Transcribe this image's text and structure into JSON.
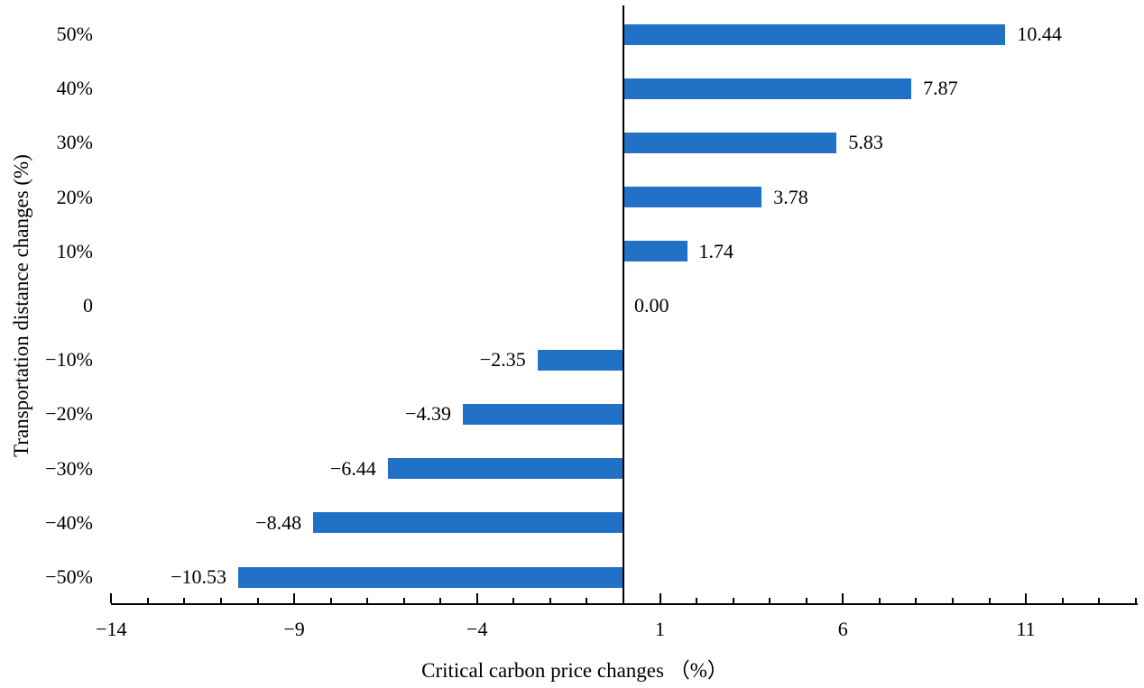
{
  "chart_data": {
    "type": "bar",
    "orientation": "horizontal",
    "title": "",
    "xlabel": "Critical carbon price changes （%）",
    "ylabel": "Transportation distance changes (%)",
    "categories": [
      "50%",
      "40%",
      "30%",
      "20%",
      "10%",
      "0",
      "−10%",
      "−20%",
      "−30%",
      "−40%",
      "−50%"
    ],
    "values": [
      10.44,
      7.87,
      5.83,
      3.78,
      1.74,
      0.0,
      -2.35,
      -4.39,
      -6.44,
      -8.48,
      -10.53
    ],
    "data_labels": [
      "10.44",
      "7.87",
      "5.83",
      "3.78",
      "1.74",
      "0.00",
      "−2.35",
      "−4.39",
      "−6.44",
      "−8.48",
      "−10.53"
    ],
    "xlim": [
      -14,
      14
    ],
    "x_major_ticks": [
      -14,
      -9,
      -4,
      1,
      6,
      11
    ],
    "x_tick_labels": [
      "−14",
      "−9",
      "−4",
      "1",
      "6",
      "11"
    ],
    "x_minor_unit": 1,
    "x_major_unit": 5,
    "grid": false,
    "legend": false,
    "bar_color": "#2171C7",
    "axis_color": "#000000",
    "text_color": "#000000"
  }
}
